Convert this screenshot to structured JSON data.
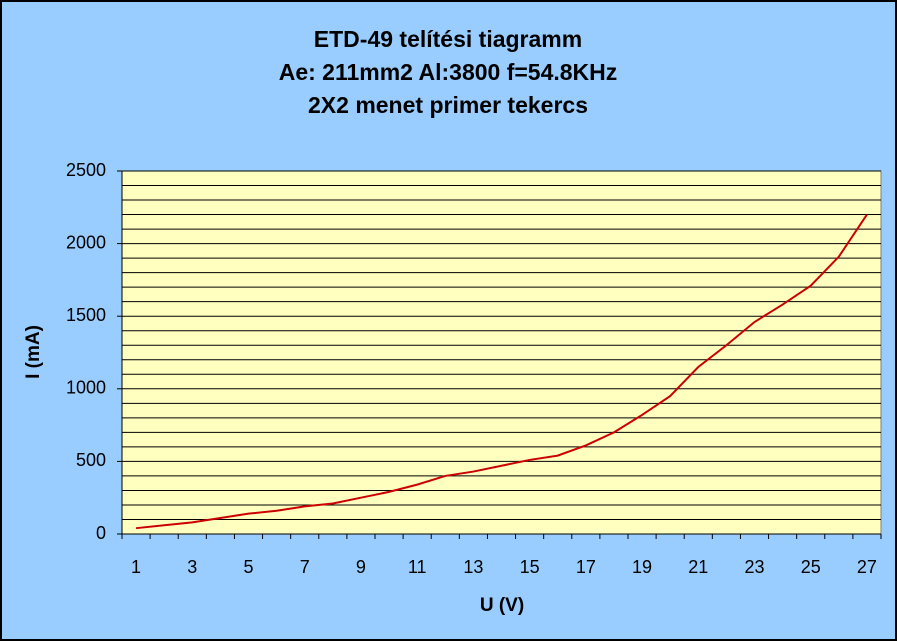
{
  "chart_data": {
    "type": "line",
    "title": [
      "ETD-49 telítési tiagramm",
      "Ae: 211mm2 Al:3800 f=54.8KHz",
      "2X2 menet primer tekercs"
    ],
    "x_label": "U (V)",
    "y_label": "I (mA)",
    "categories": [
      1,
      null,
      3,
      null,
      5,
      null,
      7,
      null,
      9,
      null,
      11,
      null,
      13,
      null,
      15,
      null,
      17,
      null,
      19,
      null,
      21,
      null,
      23,
      null,
      25,
      null,
      27
    ],
    "series": [
      {
        "name": "I (mA)",
        "color": "#cc0000",
        "values": [
          40,
          60,
          80,
          110,
          140,
          160,
          190,
          210,
          250,
          290,
          340,
          400,
          430,
          470,
          510,
          540,
          610,
          700,
          820,
          950,
          1150,
          1300,
          1460,
          1580,
          1710,
          1910,
          2200
        ]
      }
    ],
    "ylim": [
      0,
      2500
    ],
    "yticks": [
      0,
      500,
      1000,
      1500,
      2000,
      2500
    ],
    "minor_yticks": [
      100,
      200,
      300,
      400,
      600,
      700,
      800,
      900,
      1100,
      1200,
      1300,
      1400,
      1600,
      1700,
      1800,
      1900,
      2100,
      2200,
      2300,
      2400
    ],
    "grid": true,
    "legend": false
  }
}
